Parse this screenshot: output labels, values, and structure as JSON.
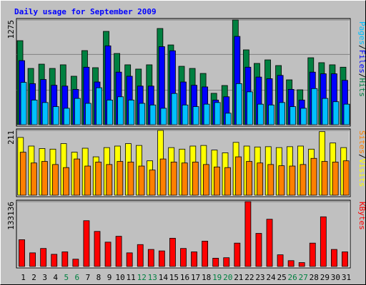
{
  "chart_data": [
    {
      "type": "bar",
      "title": "Daily usage for September 2009",
      "ylim": [
        0,
        1275
      ],
      "yticks": [
        1275
      ],
      "legend_separator": "/",
      "series": [
        {
          "name": "Hits",
          "color": "#008040",
          "values": [
            1023,
            685,
            737,
            685,
            729,
            590,
            902,
            694,
            1136,
            867,
            729,
            677,
            729,
            1171,
            971,
            711,
            685,
            624,
            382,
            477,
            1275,
            911,
            746,
            789,
            720,
            546,
            425,
            815,
            755,
            729,
            700
          ]
        },
        {
          "name": "Files",
          "color": "#0000ff",
          "values": [
            780,
            500,
            550,
            480,
            470,
            430,
            700,
            520,
            960,
            640,
            590,
            470,
            470,
            950,
            900,
            520,
            480,
            460,
            300,
            340,
            1075,
            700,
            580,
            560,
            600,
            430,
            300,
            640,
            620,
            620,
            540
          ]
        },
        {
          "name": "Pages",
          "color": "#00c0ff",
          "values": [
            515,
            300,
            270,
            220,
            200,
            320,
            260,
            450,
            300,
            340,
            300,
            260,
            240,
            200,
            380,
            240,
            220,
            250,
            270,
            140,
            500,
            400,
            250,
            240,
            270,
            220,
            200,
            440,
            320,
            280,
            250
          ]
        }
      ]
    },
    {
      "type": "bar",
      "ylim": [
        0,
        211
      ],
      "yticks": [
        211
      ],
      "legend_separator": "/",
      "series": [
        {
          "name": "Visits",
          "color": "#ffff00",
          "values": [
            188,
            160,
            152,
            150,
            168,
            140,
            153,
            125,
            155,
            160,
            168,
            162,
            112,
            211,
            155,
            150,
            160,
            162,
            147,
            138,
            172,
            160,
            157,
            158,
            155,
            158,
            160,
            150,
            207,
            170,
            155
          ]
        },
        {
          "name": "Sites",
          "color": "#ff8000",
          "values": [
            140,
            105,
            110,
            100,
            90,
            118,
            95,
            108,
            100,
            110,
            108,
            95,
            82,
            118,
            108,
            105,
            108,
            100,
            92,
            90,
            125,
            110,
            105,
            100,
            96,
            95,
            100,
            120,
            110,
            108,
            112
          ]
        }
      ]
    },
    {
      "type": "bar",
      "ylim": [
        0,
        133136
      ],
      "yticks": [
        133136
      ],
      "categories": [
        "1",
        "2",
        "3",
        "4",
        "5",
        "6",
        "7",
        "8",
        "9",
        "10",
        "11",
        "12",
        "13",
        "14",
        "15",
        "16",
        "17",
        "18",
        "19",
        "20",
        "21",
        "22",
        "23",
        "24",
        "25",
        "26",
        "27",
        "28",
        "29",
        "30",
        "31"
      ],
      "category_colors": [
        "#000000",
        "#000000",
        "#000000",
        "#000000",
        "#008040",
        "#008040",
        "#000000",
        "#000000",
        "#000000",
        "#000000",
        "#000000",
        "#008040",
        "#008040",
        "#000000",
        "#000000",
        "#000000",
        "#000000",
        "#000000",
        "#008040",
        "#008040",
        "#000000",
        "#000000",
        "#000000",
        "#000000",
        "#000000",
        "#008040",
        "#008040",
        "#000000",
        "#000000",
        "#000000",
        "#000000"
      ],
      "series": [
        {
          "name": "KBytes",
          "color": "#ff0000",
          "values": [
            55000,
            28000,
            37000,
            25000,
            30000,
            15000,
            94000,
            72000,
            50000,
            62000,
            28000,
            45000,
            35000,
            32000,
            58000,
            37000,
            30000,
            52000,
            17000,
            18000,
            48000,
            133136,
            68000,
            97000,
            24000,
            12000,
            8000,
            48000,
            102000,
            35000,
            30000
          ]
        }
      ]
    }
  ]
}
